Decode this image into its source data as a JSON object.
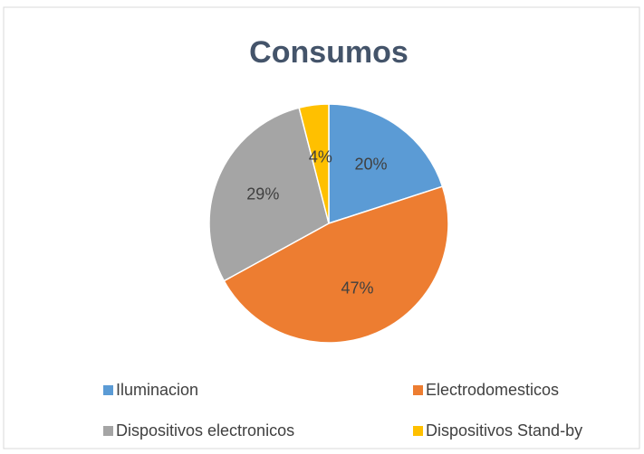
{
  "chart_data": {
    "type": "pie",
    "title": "Consumos",
    "categories": [
      "Iluminacion",
      "Electrodomesticos",
      "Dispositivos electronicos",
      "Dispositivos Stand-by"
    ],
    "values": [
      20,
      47,
      29,
      4
    ],
    "value_labels": [
      "20%",
      "47%",
      "29%",
      "4%"
    ],
    "colors": [
      "#5b9bd5",
      "#ed7d31",
      "#a5a5a5",
      "#ffc000"
    ],
    "legend": "bottom"
  }
}
